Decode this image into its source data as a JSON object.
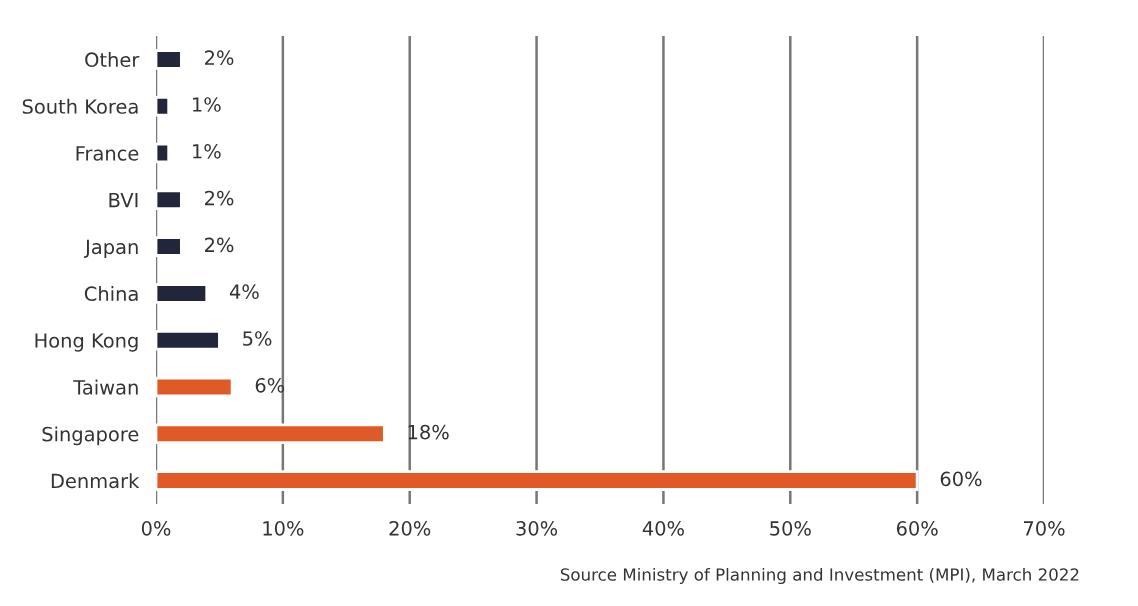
{
  "chart_data": {
    "type": "bar",
    "orientation": "horizontal",
    "categories": [
      "Other",
      "South Korea",
      "France",
      "BVI",
      "Japan",
      "China",
      "Hong Kong",
      "Taiwan",
      "Singapore",
      "Denmark"
    ],
    "values": [
      2,
      1,
      1,
      2,
      2,
      4,
      5,
      6,
      18,
      60
    ],
    "colors": [
      "#22263a",
      "#22263a",
      "#22263a",
      "#22263a",
      "#22263a",
      "#22263a",
      "#22263a",
      "#e05a28",
      "#e05a28",
      "#e05a28"
    ],
    "value_labels": [
      "2%",
      "1%",
      "1%",
      "2%",
      "2%",
      "4%",
      "5%",
      "6%",
      "18%",
      "60%"
    ],
    "xlim": [
      0,
      70
    ],
    "xticks": [
      {
        "value": 0,
        "label": "0%"
      },
      {
        "value": 10,
        "label": "10%"
      },
      {
        "value": 20,
        "label": "20%"
      },
      {
        "value": 30,
        "label": "30%"
      },
      {
        "value": 40,
        "label": "40%"
      },
      {
        "value": 50,
        "label": "50%"
      },
      {
        "value": 60,
        "label": "60%"
      },
      {
        "value": 70,
        "label": "70%"
      }
    ],
    "grid": "x",
    "legend": false,
    "annotations": [
      "Source Ministry of Planning and Investment (MPI), March 2022"
    ]
  }
}
